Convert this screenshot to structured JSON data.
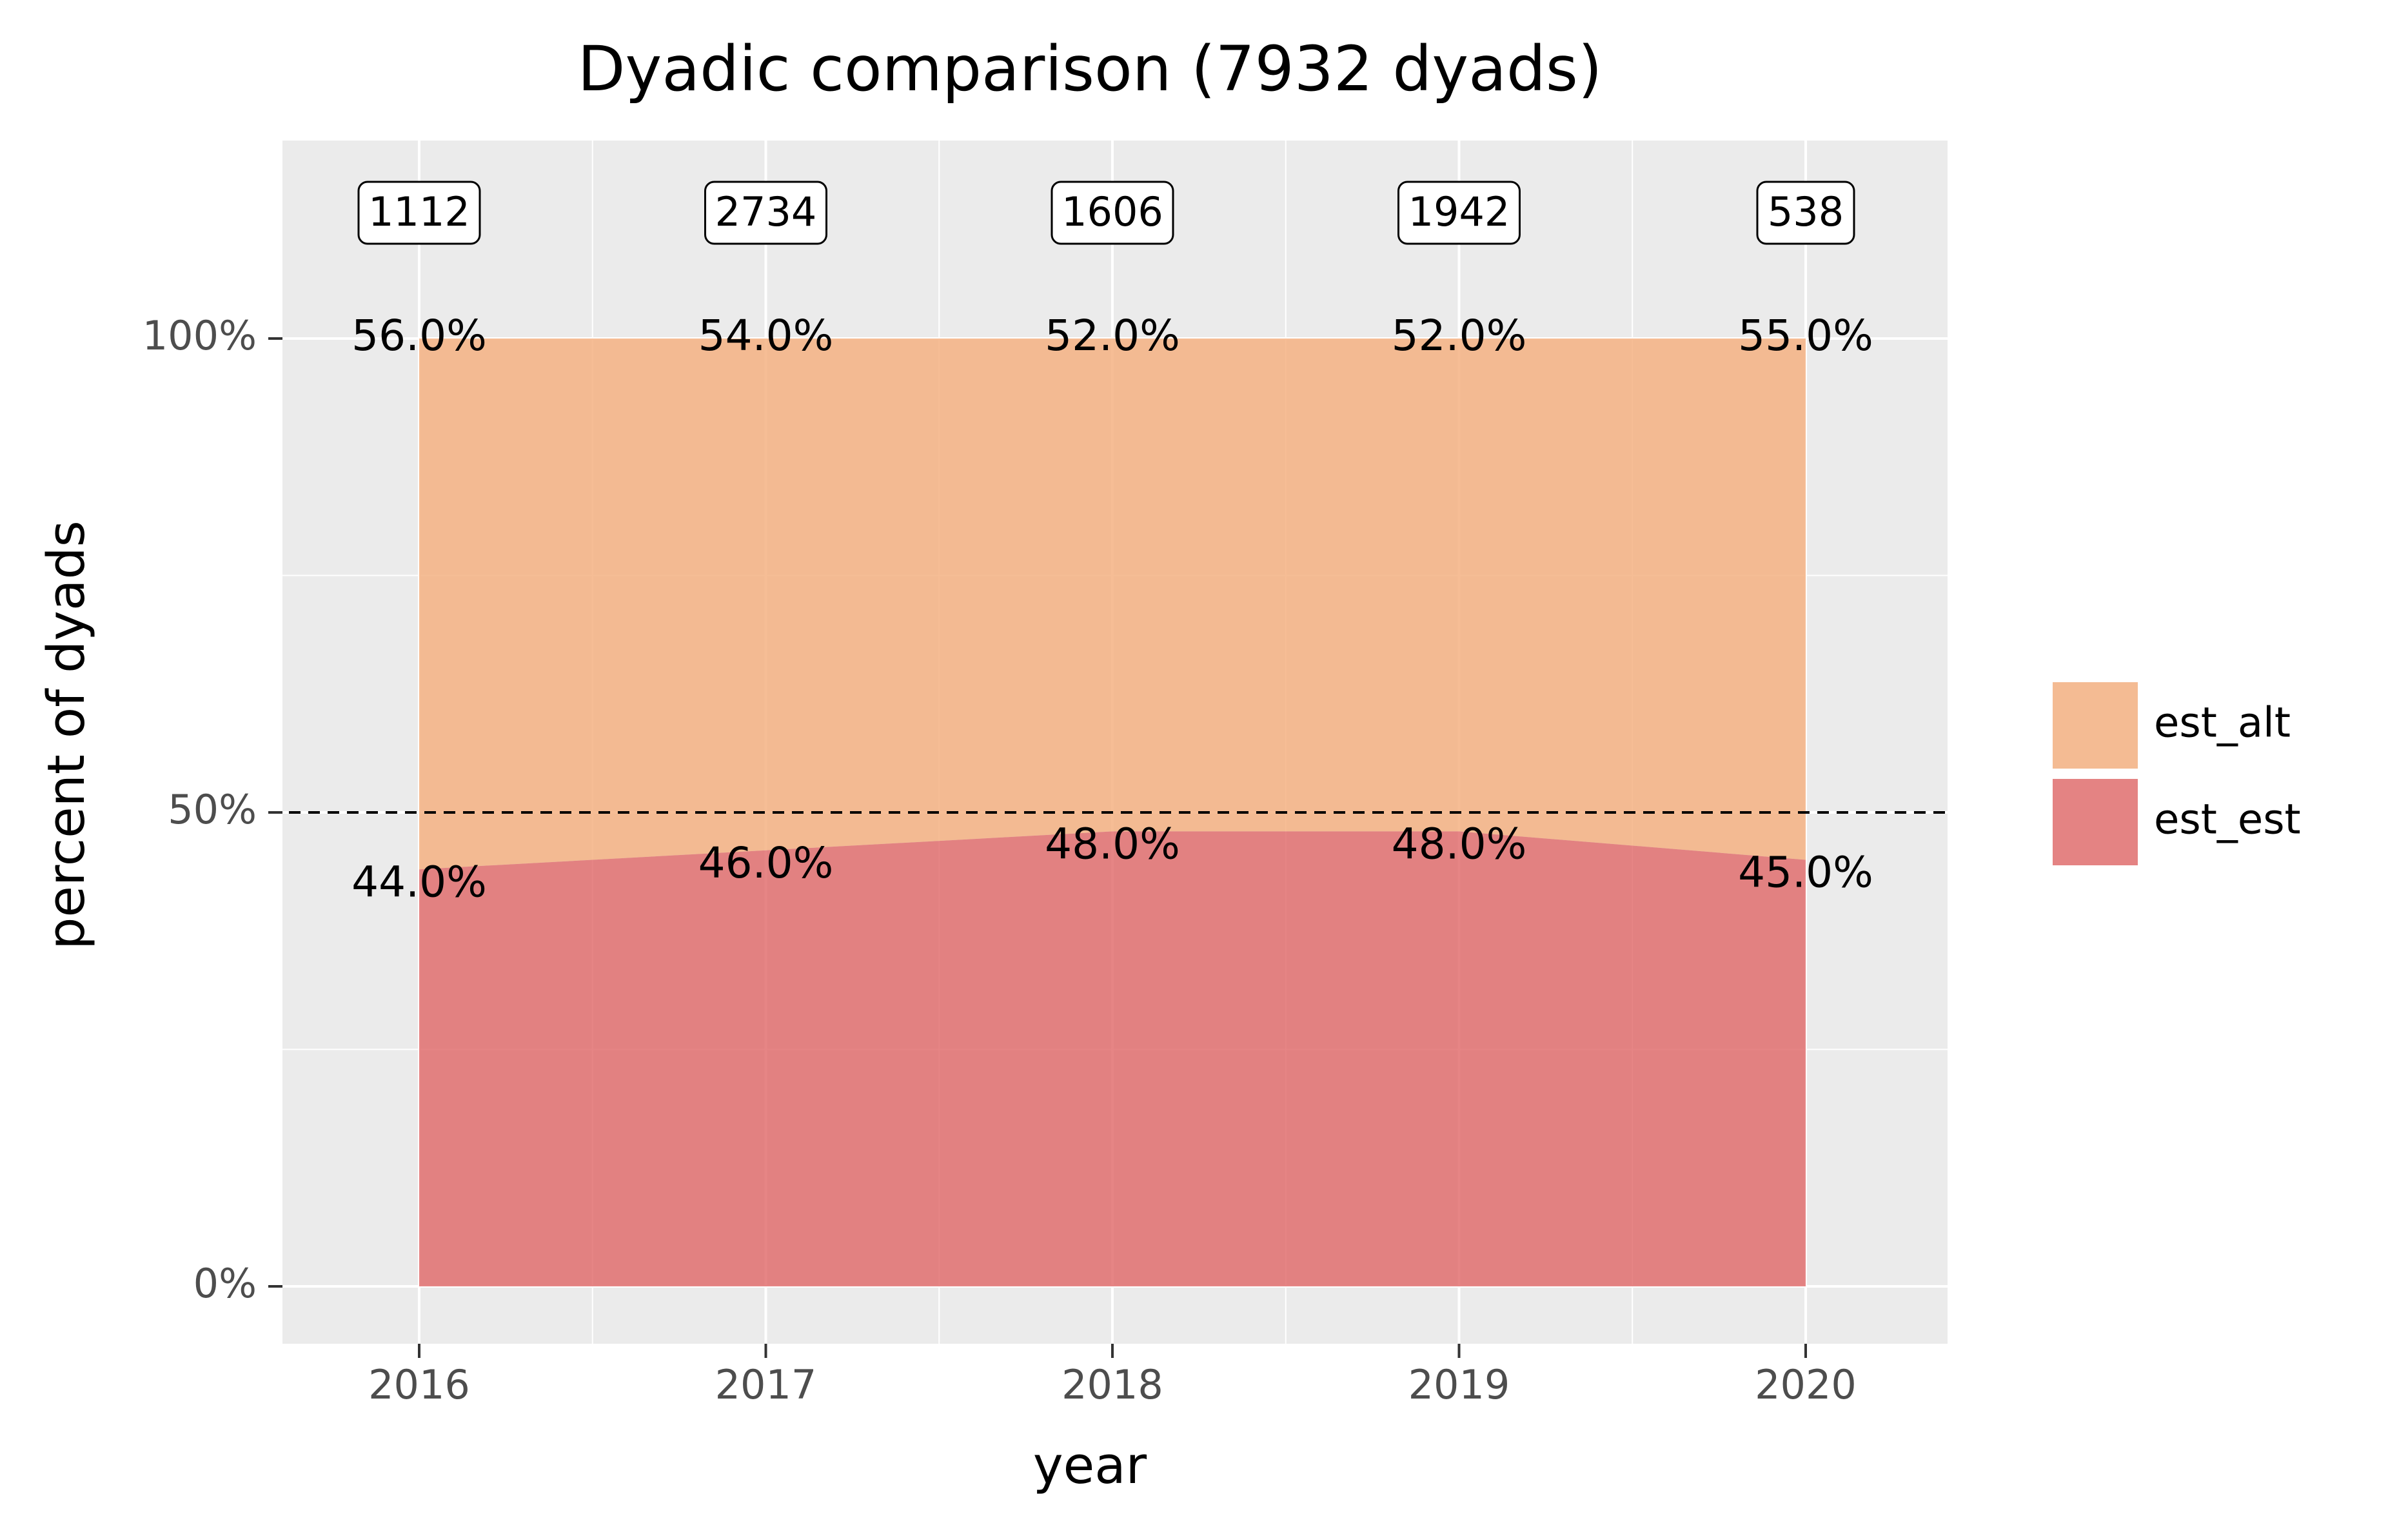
{
  "chart_data": {
    "type": "area",
    "stacked": true,
    "normalized": true,
    "title": "Dyadic comparison (7932 dyads)",
    "xlabel": "year",
    "ylabel": "percent of dyads",
    "x": [
      2016,
      2017,
      2018,
      2019,
      2020
    ],
    "x_tick_labels": [
      "2016",
      "2017",
      "2018",
      "2019",
      "2020"
    ],
    "y_ticks": [
      0,
      50,
      100
    ],
    "y_tick_labels": [
      "0%",
      "50%",
      "100%"
    ],
    "ylim": [
      -6,
      120
    ],
    "series": [
      {
        "name": "est_est",
        "values": [
          44.0,
          46.0,
          48.0,
          48.0,
          45.0
        ],
        "labels": [
          "44.0%",
          "46.0%",
          "48.0%",
          "48.0%",
          "45.0%"
        ],
        "color": "#e06666"
      },
      {
        "name": "est_alt",
        "values": [
          56.0,
          54.0,
          52.0,
          52.0,
          55.0
        ],
        "labels": [
          "56.0%",
          "54.0%",
          "52.0%",
          "52.0%",
          "55.0%"
        ],
        "color": "#f4b183"
      }
    ],
    "counts": [
      "1112",
      "2734",
      "1606",
      "1942",
      "538"
    ],
    "reference_line": {
      "y": 50,
      "style": "dashed"
    },
    "legend": {
      "position": "right",
      "entries": [
        "est_alt",
        "est_est"
      ]
    },
    "grid": true,
    "panel_background": "#ebebeb"
  }
}
